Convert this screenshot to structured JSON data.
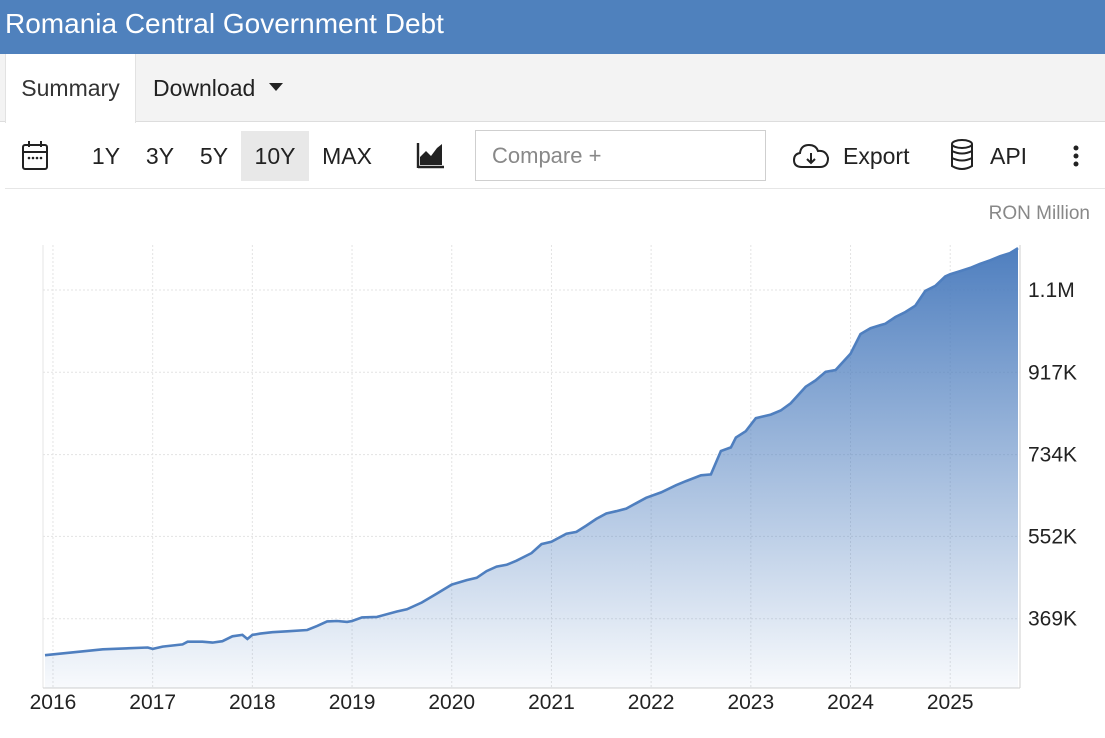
{
  "header": {
    "title": "Romania Central Government Debt"
  },
  "tabs": {
    "summary": "Summary",
    "download": "Download"
  },
  "toolbar": {
    "ranges": [
      "1Y",
      "3Y",
      "5Y",
      "10Y",
      "MAX"
    ],
    "active_range": "10Y",
    "compare_placeholder": "Compare +",
    "export_label": "Export",
    "api_label": "API"
  },
  "icons": [
    "calendar-icon",
    "area-chart-icon",
    "cloud-download-icon",
    "database-icon",
    "more-vertical-icon"
  ],
  "colors": {
    "header": "#4f81bd",
    "line": "#4f7fbf",
    "fill_top": "#4f7fbf"
  },
  "chart_data": {
    "type": "area",
    "unit": "RON Million",
    "title": "",
    "xlabel": "",
    "ylabel": "",
    "x_ticks": [
      "2016",
      "2017",
      "2018",
      "2019",
      "2020",
      "2021",
      "2022",
      "2023",
      "2024",
      "2025"
    ],
    "y_ticks": [
      "369K",
      "552K",
      "734K",
      "917K",
      "1.1M"
    ],
    "y_tick_values": [
      369,
      552,
      734,
      917,
      1100
    ],
    "ylim": [
      215,
      1200
    ],
    "xlim": [
      2015.9,
      2025.7
    ],
    "grid": true,
    "x": [
      2015.92,
      2016.5,
      2016.95,
      2017.0,
      2017.1,
      2017.3,
      2017.35,
      2017.5,
      2017.6,
      2017.7,
      2017.8,
      2017.9,
      2017.95,
      2018.0,
      2018.08,
      2018.2,
      2018.35,
      2018.55,
      2018.65,
      2018.75,
      2018.85,
      2018.95,
      2019.0,
      2019.1,
      2019.25,
      2019.45,
      2019.55,
      2019.7,
      2019.85,
      2020.0,
      2020.15,
      2020.25,
      2020.35,
      2020.45,
      2020.55,
      2020.65,
      2020.8,
      2020.9,
      2021.0,
      2021.15,
      2021.25,
      2021.35,
      2021.45,
      2021.55,
      2021.65,
      2021.75,
      2021.85,
      2021.95,
      2022.1,
      2022.25,
      2022.35,
      2022.5,
      2022.6,
      2022.7,
      2022.8,
      2022.85,
      2022.95,
      2023.05,
      2023.2,
      2023.3,
      2023.4,
      2023.55,
      2023.65,
      2023.75,
      2023.85,
      2024.0,
      2024.1,
      2024.2,
      2024.3,
      2024.35,
      2024.45,
      2024.55,
      2024.65,
      2024.75,
      2024.85,
      2024.95,
      2025.0,
      2025.1,
      2025.2,
      2025.3,
      2025.4,
      2025.5,
      2025.6,
      2025.68
    ],
    "values": [
      288,
      301,
      305,
      302,
      307,
      312,
      318,
      318,
      316,
      319,
      330,
      333,
      324,
      333,
      336,
      339,
      341,
      344,
      353,
      363,
      364,
      362,
      364,
      372,
      373,
      385,
      390,
      405,
      425,
      445,
      455,
      460,
      475,
      485,
      489,
      498,
      515,
      535,
      540,
      558,
      562,
      576,
      591,
      603,
      608,
      614,
      626,
      638,
      650,
      666,
      675,
      688,
      690,
      742,
      750,
      772,
      786,
      815,
      823,
      832,
      848,
      885,
      899,
      918,
      922,
      958,
      1002,
      1015,
      1022,
      1025,
      1040,
      1051,
      1065,
      1098,
      1109,
      1130,
      1135,
      1142,
      1149,
      1158,
      1166,
      1175,
      1182,
      1193
    ]
  }
}
